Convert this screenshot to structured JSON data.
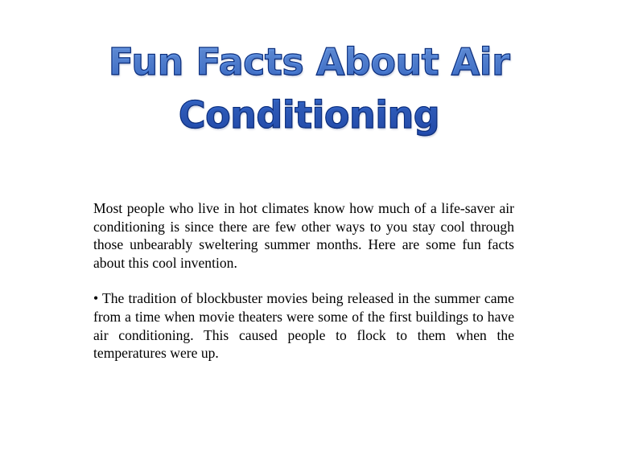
{
  "slide": {
    "title_line1": "Fun Facts About Air",
    "title_line2": "Conditioning",
    "paragraphs": [
      " Most people who live in hot climates know how much of a life-saver air conditioning is since there are few other ways to you stay cool through those unbearably sweltering summer months. Here are some fun facts about this cool invention.",
      "• The tradition of blockbuster movies being released in the summer came from a time when movie theaters were some of the first buildings to have air conditioning. This caused people to flock to them when the temperatures were up."
    ],
    "title_color": "#3f78dc",
    "title_outline_color": "#0f2f7a"
  }
}
